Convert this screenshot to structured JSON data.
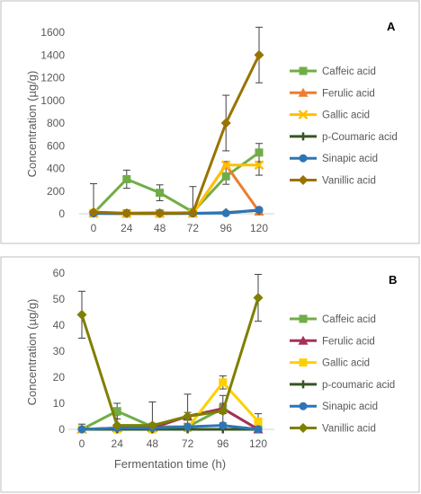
{
  "chart_data": [
    {
      "panel": "A",
      "type": "line",
      "ylabel": "Concentration (µg/g)",
      "xlabel": "",
      "x": [
        0,
        24,
        48,
        72,
        96,
        120
      ],
      "ylim": [
        0,
        1600
      ],
      "yticks": [
        0,
        200,
        400,
        600,
        800,
        1000,
        1200,
        1400,
        1600
      ],
      "grid": false,
      "legend_position": "right",
      "series": [
        {
          "name": "Caffeic acid",
          "color": "#70ad47",
          "marker": "square",
          "values": [
            5,
            305,
            185,
            15,
            330,
            540
          ],
          "errors": [
            10,
            80,
            70,
            20,
            70,
            80
          ]
        },
        {
          "name": "Ferulic acid",
          "color": "#ed7d31",
          "marker": "triangle",
          "values": [
            10,
            2,
            3,
            4,
            430,
            20
          ],
          "errors": [
            5,
            3,
            3,
            3,
            30,
            10
          ]
        },
        {
          "name": "Gallic acid",
          "color": "#ffc000",
          "marker": "x",
          "values": [
            3,
            2,
            2,
            3,
            430,
            430
          ],
          "errors": [
            5,
            3,
            3,
            5,
            30,
            90
          ]
        },
        {
          "name": "p-Coumaric acid",
          "color": "#375623",
          "marker": "plus",
          "values": [
            3,
            2,
            2,
            3,
            10,
            30
          ],
          "errors": [
            3,
            3,
            3,
            3,
            5,
            10
          ]
        },
        {
          "name": "Sinapic acid",
          "color": "#2e75b6",
          "marker": "circle",
          "values": [
            5,
            5,
            8,
            5,
            5,
            35
          ],
          "errors": [
            5,
            5,
            5,
            5,
            5,
            10
          ]
        },
        {
          "name": "Vanillic acid",
          "color": "#997300",
          "marker": "diamond",
          "values": [
            15,
            5,
            5,
            10,
            800,
            1400
          ],
          "errors": [
            250,
            30,
            20,
            230,
            245,
            245
          ]
        }
      ]
    },
    {
      "panel": "B",
      "type": "line",
      "ylabel": "Concentration (µg/g)",
      "xlabel": "Fermentation time (h)",
      "x": [
        0,
        24,
        48,
        72,
        96,
        120
      ],
      "ylim": [
        0,
        60
      ],
      "yticks": [
        0,
        10,
        20,
        30,
        40,
        50,
        60
      ],
      "grid": false,
      "legend_position": "right",
      "series": [
        {
          "name": "Caffeic acid",
          "color": "#70ad47",
          "marker": "square",
          "values": [
            0,
            7,
            1,
            1,
            8,
            0
          ],
          "errors": [
            2,
            3,
            1,
            1,
            2,
            1
          ]
        },
        {
          "name": "Ferulic acid",
          "color": "#a5315a",
          "marker": "triangle",
          "values": [
            0,
            0.5,
            0.5,
            5,
            8,
            0
          ],
          "errors": [
            1,
            1,
            1,
            1.5,
            1.5,
            1
          ]
        },
        {
          "name": "Gallic acid",
          "color": "#ffd000",
          "marker": "square",
          "values": [
            0,
            0,
            0,
            0.5,
            18,
            3
          ],
          "errors": [
            1,
            1,
            1,
            1,
            2.5,
            3
          ]
        },
        {
          "name": "p-coumaric acid",
          "color": "#375623",
          "marker": "plus",
          "values": [
            0,
            0,
            0,
            0,
            0,
            0
          ],
          "errors": [
            0.5,
            0.5,
            0.5,
            0.5,
            0.5,
            0.5
          ]
        },
        {
          "name": "Sinapic acid",
          "color": "#2e75b6",
          "marker": "circle",
          "values": [
            0,
            0.5,
            0.5,
            1,
            1.5,
            0
          ],
          "errors": [
            1,
            1,
            1,
            1,
            1,
            1
          ]
        },
        {
          "name": "Vanillic acid",
          "color": "#7f7f00",
          "marker": "diamond",
          "values": [
            44,
            1.5,
            1.5,
            5,
            7,
            50.5
          ],
          "errors": [
            9,
            4,
            9,
            8.5,
            6,
            9
          ]
        }
      ]
    }
  ]
}
